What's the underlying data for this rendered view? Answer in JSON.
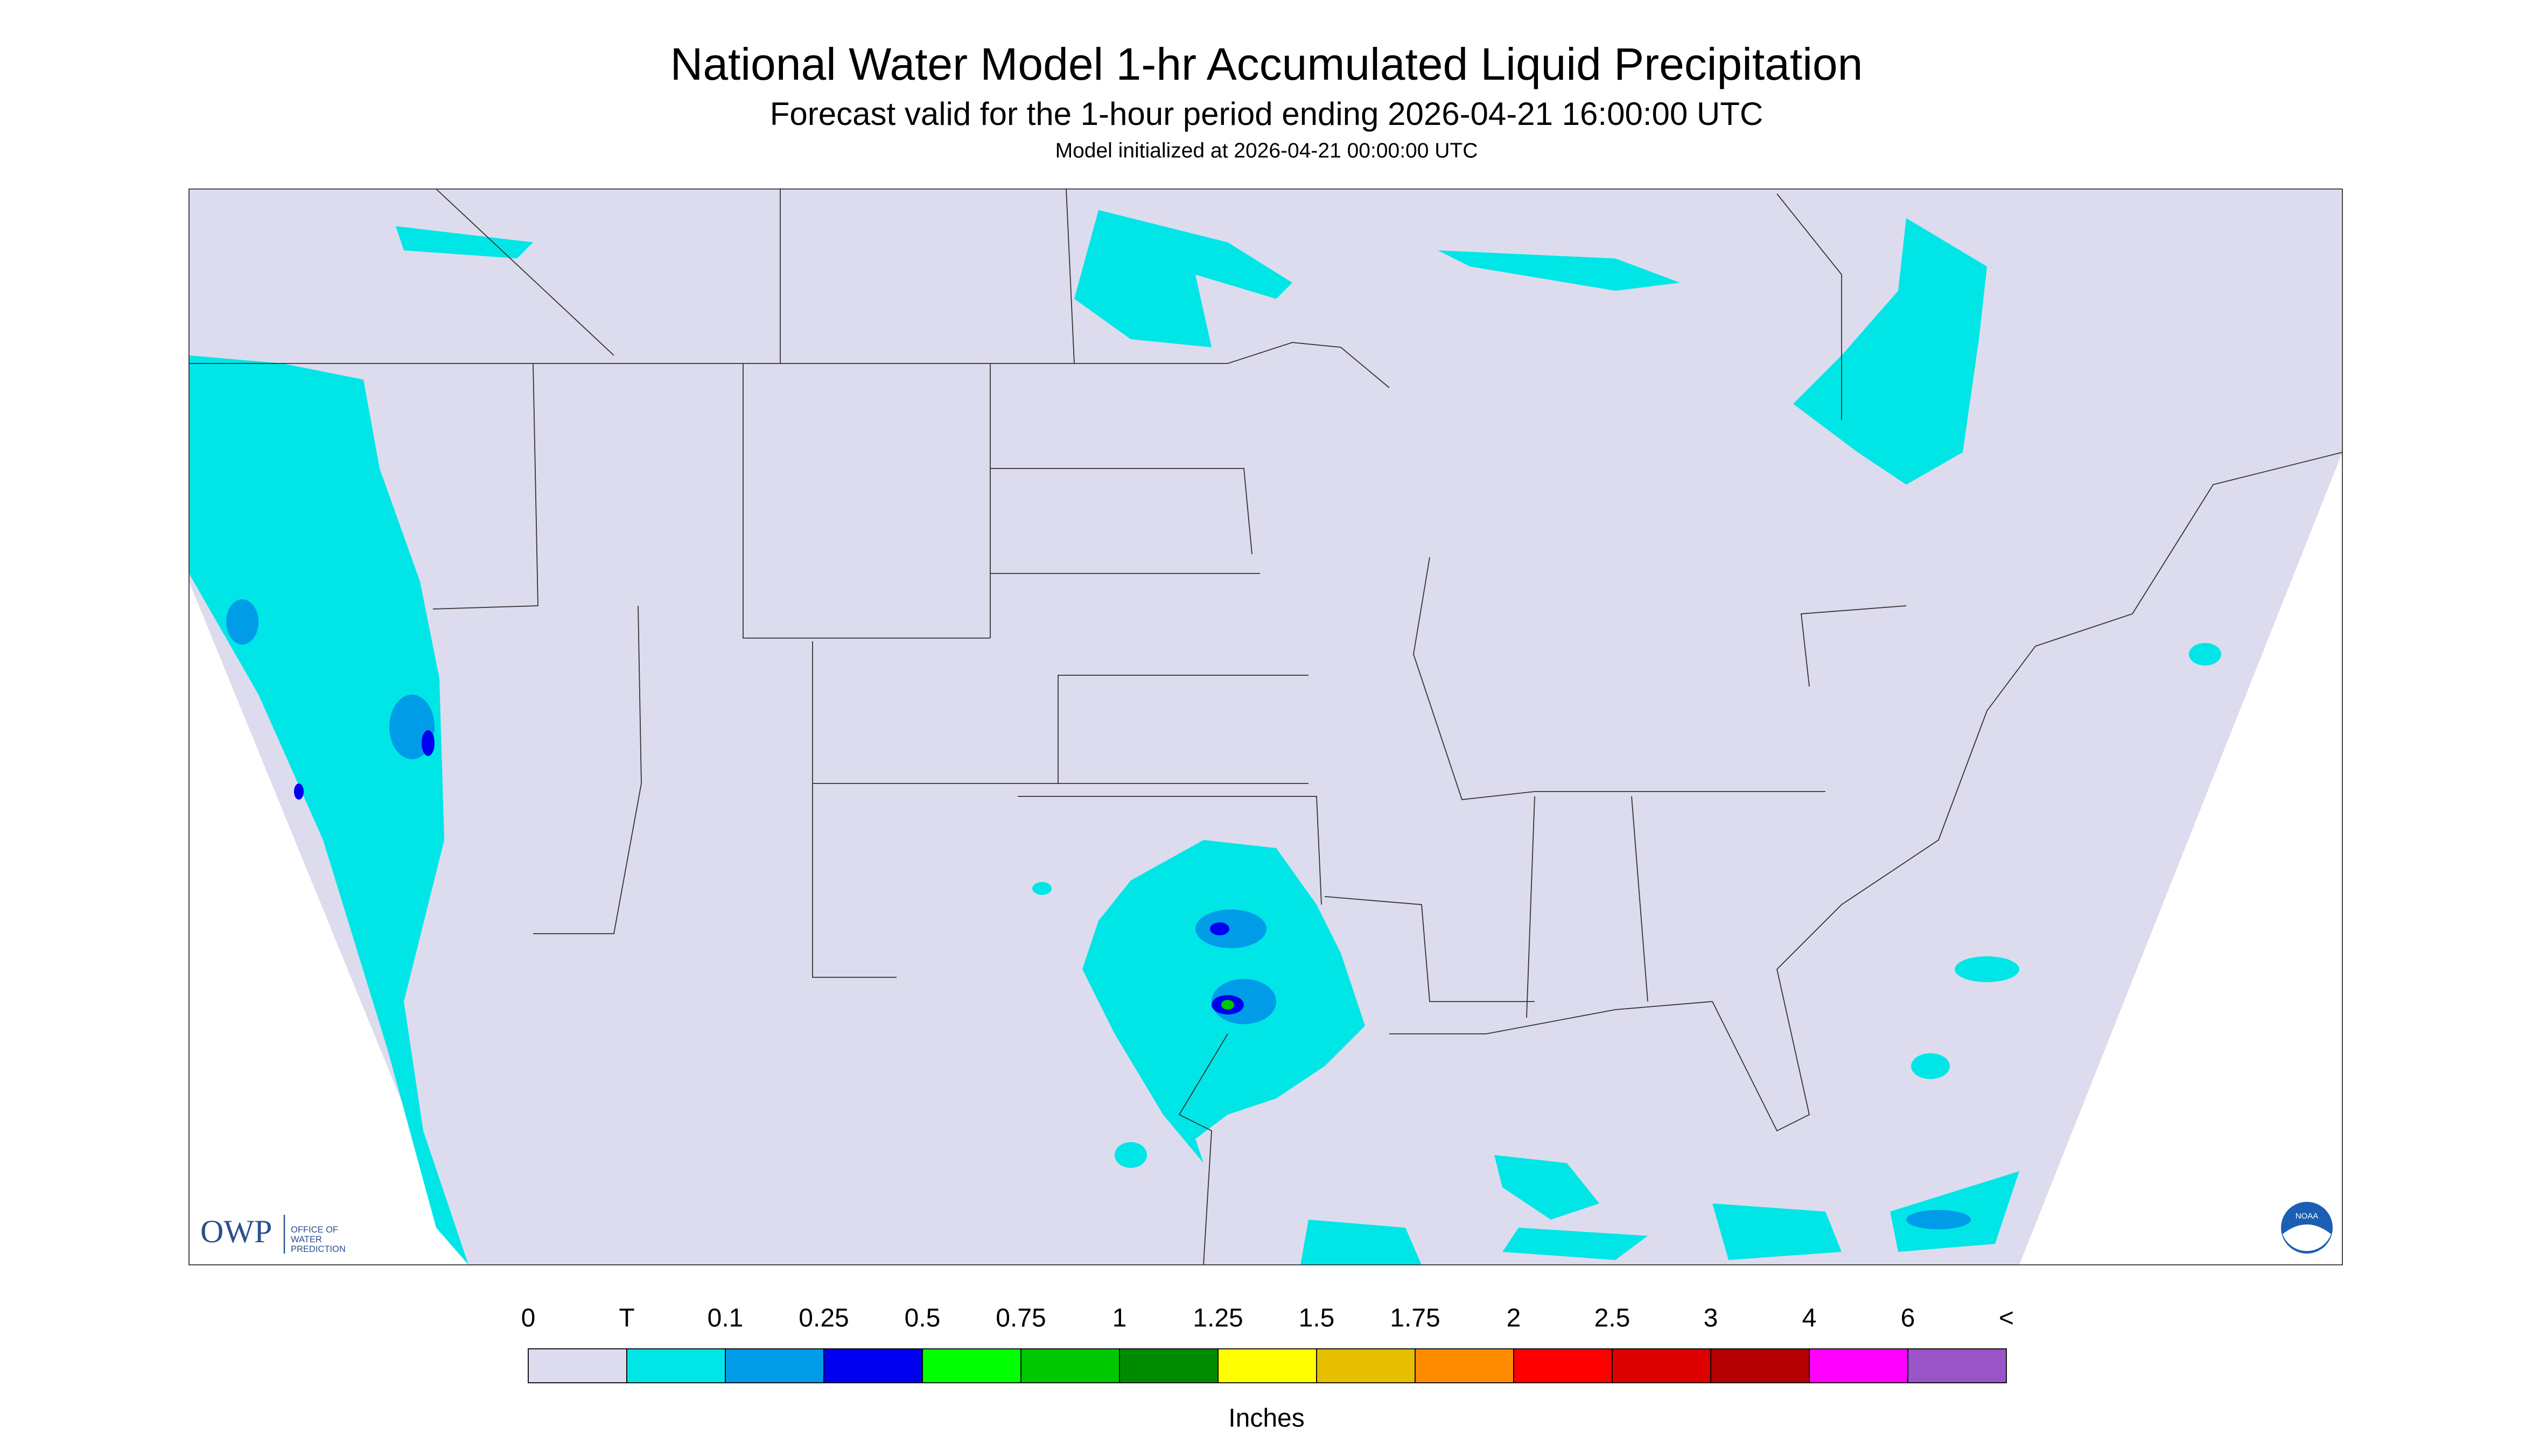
{
  "header": {
    "title": "National Water Model 1-hr Accumulated Liquid Precipitation",
    "subtitle": "Forecast valid for the 1-hour period ending 2026-04-21 16:00:00 UTC",
    "initialized": "Model initialized at 2026-04-21 00:00:00 UTC"
  },
  "legend": {
    "labels": [
      "0",
      "T",
      "0.1",
      "0.25",
      "0.5",
      "0.75",
      "1",
      "1.25",
      "1.5",
      "1.75",
      "2",
      "2.5",
      "3",
      "4",
      "6",
      "<"
    ],
    "colors": [
      "#dcdcee",
      "#00e6e6",
      "#009ce8",
      "#0000f0",
      "#00ff00",
      "#00c800",
      "#008c00",
      "#ffff00",
      "#e6bf00",
      "#ff8c00",
      "#ff0000",
      "#dc0000",
      "#b40000",
      "#ff00ff",
      "#9955c8"
    ],
    "unit": "Inches"
  },
  "logos": {
    "owp": "OWP",
    "owp_lines": [
      "OFFICE OF",
      "WATER",
      "PREDICTION"
    ],
    "noaa": "NOAA"
  }
}
